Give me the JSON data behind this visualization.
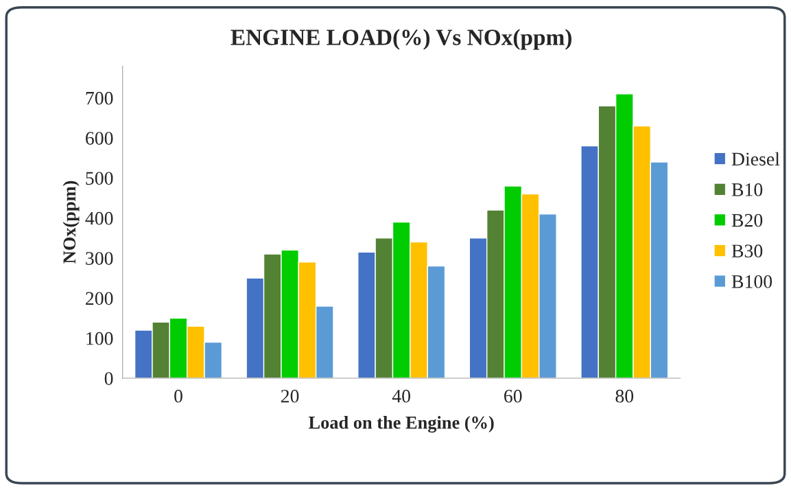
{
  "chart_data": {
    "type": "bar",
    "title": "ENGINE LOAD(%) Vs NOx(ppm)",
    "xlabel": "Load on the Engine (%)",
    "ylabel": "NOx(ppm)",
    "categories": [
      "0",
      "20",
      "40",
      "60",
      "80"
    ],
    "series": [
      {
        "name": "Diesel",
        "color": "#4472c4",
        "values": [
          120,
          250,
          315,
          350,
          580
        ]
      },
      {
        "name": "B10",
        "color": "#548235",
        "values": [
          140,
          310,
          350,
          420,
          680
        ]
      },
      {
        "name": "B20",
        "color": "#00cc00",
        "values": [
          150,
          320,
          390,
          480,
          710
        ]
      },
      {
        "name": "B30",
        "color": "#ffc000",
        "values": [
          130,
          290,
          340,
          460,
          630
        ]
      },
      {
        "name": "B100",
        "color": "#5b9bd5",
        "values": [
          90,
          180,
          280,
          410,
          540
        ]
      }
    ],
    "ylim": [
      0,
      780
    ],
    "yticks": [
      0,
      100,
      200,
      300,
      400,
      500,
      600,
      700
    ],
    "grid": false,
    "legend": "right"
  }
}
